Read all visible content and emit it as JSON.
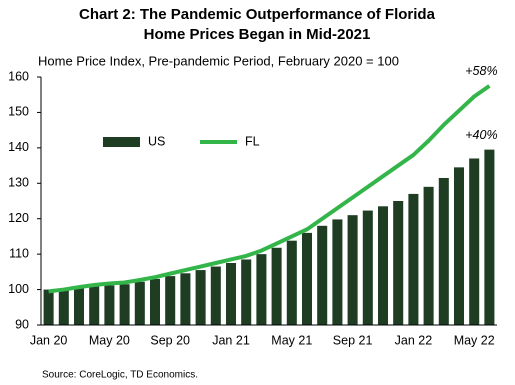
{
  "chart_data": {
    "type": "bar",
    "title": [
      "Chart 2: The Pandemic Outperformance of Florida",
      "Home Prices Began in Mid-2021"
    ],
    "subtitle": "Home Price Index, Pre-pandemic Period, February 2020 = 100",
    "source": "Source:  CoreLogic, TD Economics.",
    "categories": [
      "Jan 20",
      null,
      null,
      null,
      "May 20",
      null,
      null,
      null,
      "Sep 20",
      null,
      null,
      null,
      "Jan 21",
      null,
      null,
      null,
      "May 21",
      null,
      null,
      null,
      "Sep 21",
      null,
      null,
      null,
      "Jan 22",
      null,
      null,
      null,
      "May 22",
      null
    ],
    "series": [
      {
        "name": "US",
        "type": "bar",
        "color": "#1e3d23",
        "values": [
          100,
          100.2,
          100.6,
          101,
          101.2,
          101.5,
          102.2,
          103,
          103.8,
          104.6,
          105.5,
          106.5,
          107.5,
          108.5,
          110,
          111.8,
          113.8,
          116,
          118,
          119.8,
          121,
          122.3,
          123.5,
          125,
          127,
          129,
          131.5,
          134.5,
          137,
          139.5
        ]
      },
      {
        "name": "FL",
        "type": "line",
        "color": "#33b54a",
        "values": [
          99.5,
          100,
          100.7,
          101.3,
          101.7,
          102,
          102.7,
          103.5,
          104.5,
          105.5,
          106.5,
          107.5,
          108.5,
          109.5,
          111,
          113,
          115,
          117,
          120,
          123,
          126,
          129,
          132,
          135,
          138,
          142,
          146.5,
          150.5,
          154.5,
          157.5
        ]
      }
    ],
    "annotations": [
      "+40%",
      "+58%"
    ],
    "ylim": [
      90,
      160
    ],
    "yticks": [
      90,
      100,
      110,
      120,
      130,
      140,
      150,
      160
    ],
    "grid": false
  }
}
